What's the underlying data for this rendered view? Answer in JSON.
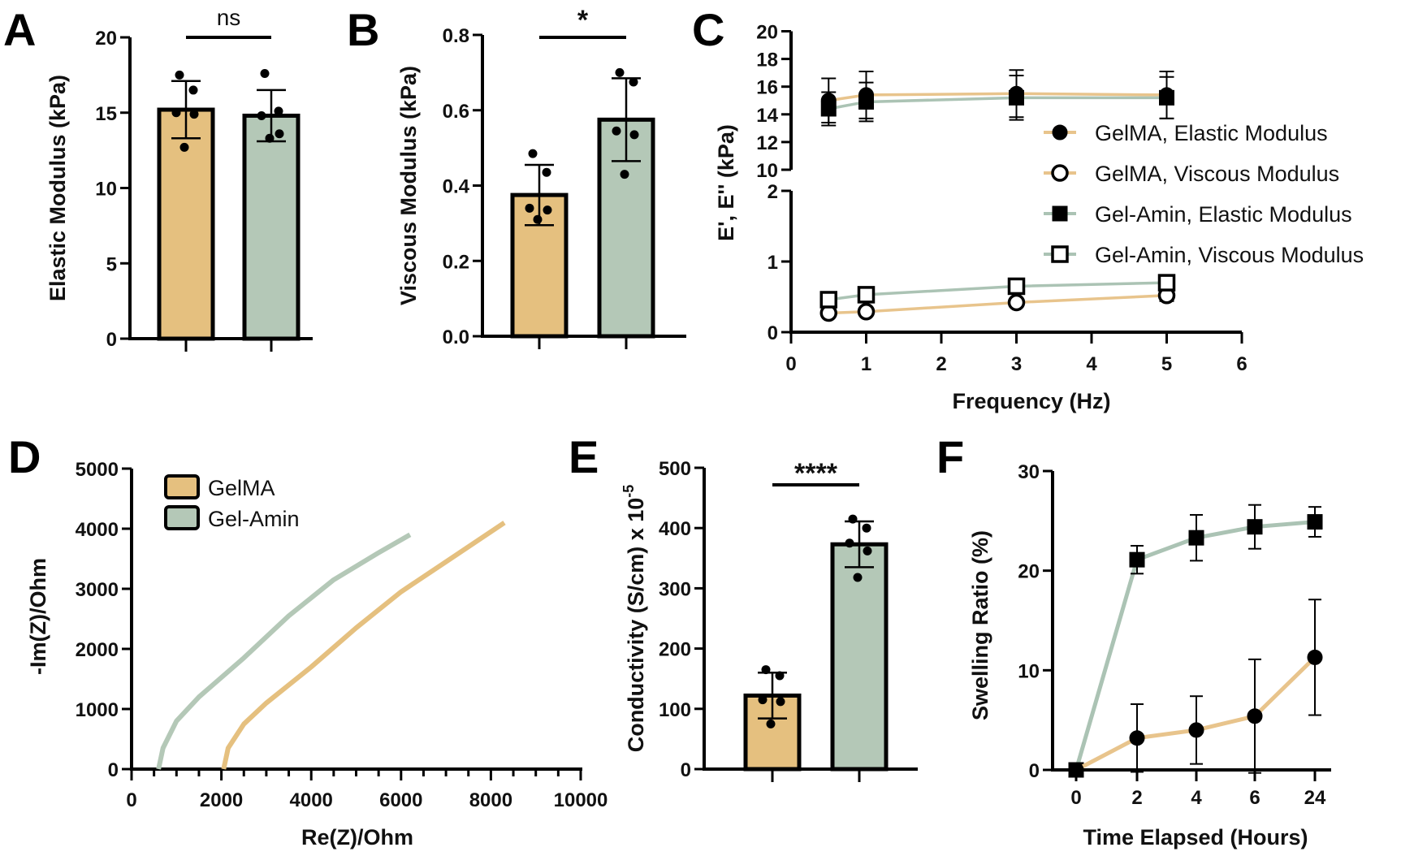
{
  "colors": {
    "gelma": "#E5C07F",
    "gelamin": "#B4C8B7",
    "gelma_line": "#E8C48C",
    "gelamin_line": "#ABC3B4",
    "ink": "#000000"
  },
  "chart_data": [
    {
      "panel": "A",
      "type": "bar",
      "ylabel": "Elastic Modulus (kPa)",
      "ylim": [
        0,
        20
      ],
      "yticks": [
        "0",
        "5",
        "10",
        "15",
        "20"
      ],
      "groups": [
        {
          "color_key": "gelma",
          "mean": 15.2,
          "sd": 1.9,
          "points": [
            17.5,
            16.5,
            15.0,
            14.9,
            12.7
          ]
        },
        {
          "color_key": "gelamin",
          "mean": 14.8,
          "sd": 1.7,
          "points": [
            17.6,
            15.1,
            14.8,
            13.6,
            13.3
          ]
        }
      ],
      "significance": "ns"
    },
    {
      "panel": "B",
      "type": "bar",
      "ylabel": "Viscous Modulus (kPa)",
      "ylim": [
        0,
        0.8
      ],
      "yticks": [
        "0.0",
        "0.2",
        "0.4",
        "0.6",
        "0.8"
      ],
      "groups": [
        {
          "color_key": "gelma",
          "mean": 0.375,
          "sd": 0.08,
          "points": [
            0.485,
            0.435,
            0.34,
            0.335,
            0.31
          ]
        },
        {
          "color_key": "gelamin",
          "mean": 0.575,
          "sd": 0.11,
          "points": [
            0.7,
            0.675,
            0.545,
            0.535,
            0.43
          ]
        }
      ],
      "significance": "*"
    },
    {
      "panel": "C",
      "type": "line",
      "xlabel": "Frequency (Hz)",
      "ylabel": "E', E'' (kPa)",
      "xlim": [
        0,
        6
      ],
      "xticks": [
        "0",
        "1",
        "2",
        "3",
        "4",
        "5",
        "6"
      ],
      "y_axis_segments": [
        {
          "range": [
            0,
            2
          ],
          "ticks": [
            "0",
            "1",
            "2"
          ]
        },
        {
          "range": [
            10,
            20
          ],
          "ticks": [
            "10",
            "12",
            "14",
            "16",
            "18",
            "20"
          ]
        }
      ],
      "x": [
        0.5,
        1,
        3,
        5
      ],
      "series": [
        {
          "name": "GelMA, Elastic Modulus",
          "marker": "filled-circle",
          "line_key": "gelma_line",
          "y": [
            15.0,
            15.4,
            15.5,
            15.4
          ],
          "err": [
            1.6,
            1.7,
            1.7,
            1.7
          ]
        },
        {
          "name": "GelMA, Viscous Modulus",
          "marker": "open-circle",
          "line_key": "gelma_line",
          "y": [
            0.27,
            0.29,
            0.42,
            0.52
          ],
          "err": [
            0.03,
            0.03,
            0.05,
            0.08
          ]
        },
        {
          "name": "Gel-Amin, Elastic Modulus",
          "marker": "filled-square",
          "line_key": "gelamin_line",
          "y": [
            14.4,
            14.9,
            15.2,
            15.2
          ],
          "err": [
            1.2,
            1.4,
            1.6,
            1.5
          ]
        },
        {
          "name": "Gel-Amin, Viscous Modulus",
          "marker": "open-square",
          "line_key": "gelamin_line",
          "y": [
            0.46,
            0.53,
            0.65,
            0.7
          ],
          "err": [
            0.04,
            0.05,
            0.08,
            0.06
          ]
        }
      ],
      "legend": "right"
    },
    {
      "panel": "D",
      "type": "line",
      "xlabel": "Re(Z)/Ohm",
      "ylabel": "-Im(Z)/Ohm",
      "xlim": [
        0,
        10000
      ],
      "ylim": [
        0,
        5000
      ],
      "xticks": [
        "0",
        "2000",
        "4000",
        "6000",
        "8000",
        "10000"
      ],
      "yticks": [
        "0",
        "1000",
        "2000",
        "3000",
        "4000",
        "5000"
      ],
      "series": [
        {
          "name": "GelMA",
          "color_key": "gelma",
          "points": [
            [
              2050,
              0
            ],
            [
              2150,
              350
            ],
            [
              2500,
              750
            ],
            [
              3000,
              1100
            ],
            [
              4000,
              1700
            ],
            [
              5000,
              2350
            ],
            [
              6000,
              2950
            ],
            [
              7000,
              3450
            ],
            [
              8300,
              4100
            ]
          ]
        },
        {
          "name": "Gel-Amin",
          "color_key": "gelamin",
          "points": [
            [
              600,
              0
            ],
            [
              700,
              350
            ],
            [
              1000,
              800
            ],
            [
              1500,
              1200
            ],
            [
              2500,
              1850
            ],
            [
              3500,
              2550
            ],
            [
              4500,
              3150
            ],
            [
              5500,
              3600
            ],
            [
              6200,
              3900
            ]
          ]
        }
      ],
      "legend": "top-left"
    },
    {
      "panel": "E",
      "type": "bar",
      "ylabel": "Conductivity (S/cm) x 10",
      "ylabel_superscript": "-5",
      "ylim": [
        0,
        500
      ],
      "yticks": [
        "0",
        "100",
        "200",
        "300",
        "400",
        "500"
      ],
      "groups": [
        {
          "color_key": "gelma",
          "mean": 122,
          "sd": 38,
          "points": [
            165,
            155,
            115,
            112,
            75
          ]
        },
        {
          "color_key": "gelamin",
          "mean": 373,
          "sd": 38,
          "points": [
            415,
            400,
            375,
            362,
            318
          ]
        }
      ],
      "significance": "****"
    },
    {
      "panel": "F",
      "type": "line",
      "xlabel": "Time Elapsed (Hours)",
      "ylabel": "Swelling Ratio (%)",
      "categories": [
        "0",
        "2",
        "4",
        "6",
        "24"
      ],
      "ylim": [
        0,
        30
      ],
      "yticks": [
        "0",
        "10",
        "20",
        "30"
      ],
      "series": [
        {
          "marker": "filled-square",
          "line_key": "gelamin_line",
          "y": [
            0,
            21.1,
            23.3,
            24.4,
            24.9
          ],
          "err": [
            0,
            1.4,
            2.3,
            2.2,
            1.5
          ]
        },
        {
          "marker": "filled-circle",
          "line_key": "gelma_line",
          "y": [
            0,
            3.2,
            4.0,
            5.4,
            11.3
          ],
          "err": [
            0,
            3.4,
            3.4,
            5.7,
            5.8
          ]
        }
      ]
    }
  ]
}
